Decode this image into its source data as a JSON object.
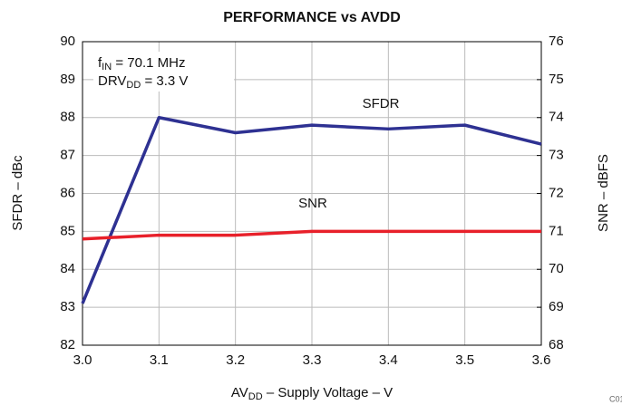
{
  "chart_data": {
    "type": "line",
    "title": "PERFORMANCE vs AVDD",
    "x": [
      3.0,
      3.1,
      3.2,
      3.3,
      3.4,
      3.5,
      3.6
    ],
    "series": [
      {
        "name": "SFDR",
        "color": "#2e3192",
        "values": [
          83.1,
          88.0,
          87.6,
          87.8,
          87.7,
          87.8,
          87.3
        ]
      },
      {
        "name": "SNR",
        "color": "#e8202a",
        "axis": "y2",
        "values": [
          70.8,
          70.9,
          70.9,
          71.0,
          71.0,
          71.0,
          71.0
        ]
      }
    ],
    "xlim": [
      3.0,
      3.6
    ],
    "xticks": [
      {
        "value": 3.0,
        "label": "3.0"
      },
      3.1,
      3.2,
      3.3,
      3.4,
      3.5,
      3.6
    ],
    "ylim": [
      82,
      90
    ],
    "yticks": [
      82,
      83,
      84,
      85,
      86,
      87,
      88,
      89,
      90
    ],
    "y2lim": [
      68,
      76
    ],
    "y2ticks": [
      68,
      69,
      70,
      71,
      72,
      73,
      74,
      75,
      76
    ],
    "grid": true,
    "y_label": "SFDR – dBc",
    "y2_label": "SNR – dBFS",
    "x_label": {
      "main": "AV",
      "sub": "DD",
      "rest": " – Supply Voltage – V"
    },
    "annotations": [
      {
        "main": "f",
        "sub": "IN",
        "rest": " = 70.1 MHz"
      },
      {
        "main": "DRV",
        "sub": "DD",
        "rest": " = 3.3 V"
      }
    ],
    "footnote": "C011"
  }
}
